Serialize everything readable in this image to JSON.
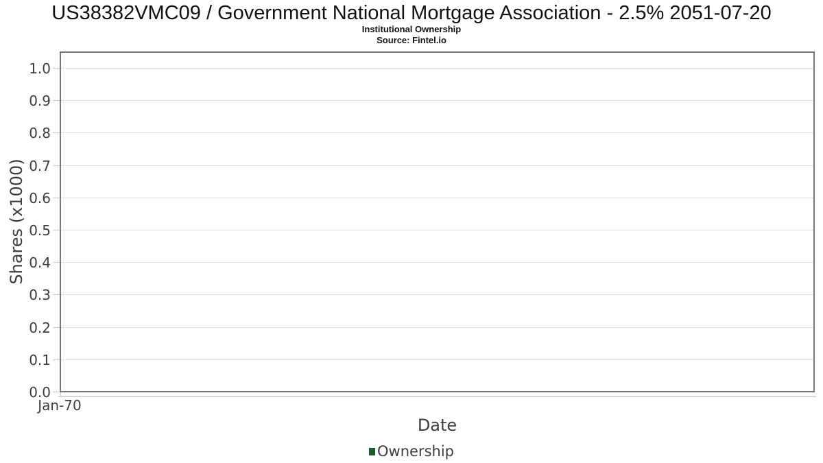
{
  "header": {
    "title": "US38382VMC09 / Government National Mortgage Association - 2.5% 2051-07-20",
    "subtitle": "Institutional Ownership",
    "source": "Source: Fintel.io"
  },
  "chart_data": {
    "type": "line",
    "title": "US38382VMC09 / Government National Mortgage Association - 2.5% 2051-07-20",
    "subtitle": "Institutional Ownership",
    "source": "Source: Fintel.io",
    "xlabel": "Date",
    "ylabel": "Shares (x1000)",
    "x_tick_labels": [
      "Jan-70"
    ],
    "y_ticks": [
      0.0,
      0.1,
      0.2,
      0.3,
      0.4,
      0.5,
      0.6,
      0.7,
      0.8,
      0.9,
      1.0
    ],
    "ylim": [
      0.0,
      1.05
    ],
    "grid": "horizontal-only",
    "legend_position": "bottom-center",
    "series": [
      {
        "name": "Ownership",
        "color": "#1e5b2d",
        "x": [],
        "values": []
      }
    ]
  },
  "colors": {
    "plot_border": "#757575",
    "gridline": "#e2e2e2",
    "tick_mark": "#c9c9c9",
    "axis_line": "#d4d4d4",
    "axis_text": "#3d3d3d",
    "title_text": "#111111",
    "ownership_series": "#1e5b2d"
  }
}
